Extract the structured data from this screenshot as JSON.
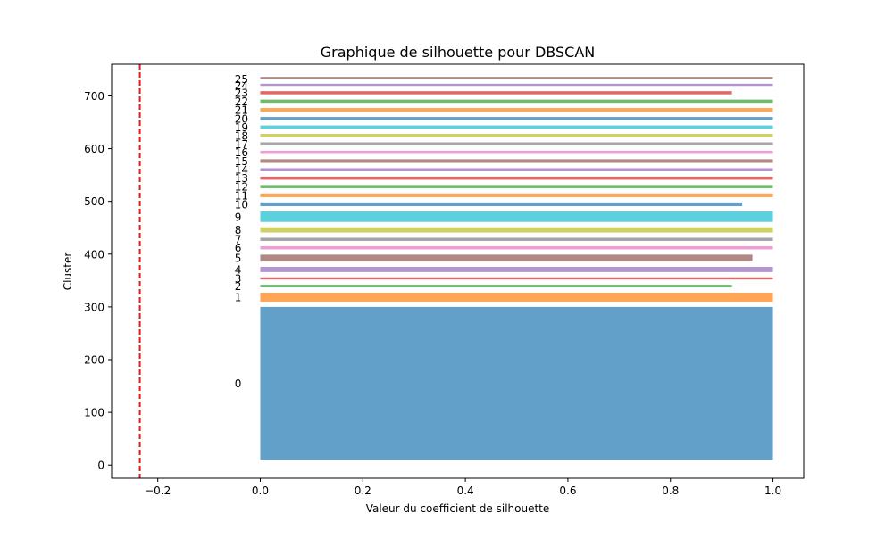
{
  "chart_data": {
    "type": "bar",
    "orientation": "horizontal",
    "title": "Graphique de silhouette pour DBSCAN",
    "xlabel": "Valeur du coefficient de silhouette",
    "ylabel": "Cluster",
    "xlim": [
      -0.29,
      1.06
    ],
    "ylim": [
      -25,
      760
    ],
    "x_ticks": [
      -0.2,
      0.0,
      0.2,
      0.4,
      0.6,
      0.8,
      1.0
    ],
    "y_ticks": [
      0,
      100,
      200,
      300,
      400,
      500,
      600,
      700
    ],
    "x_tick_labels": [
      "−0.2",
      "0.0",
      "0.2",
      "0.4",
      "0.6",
      "0.8",
      "1.0"
    ],
    "y_tick_labels": [
      "0",
      "100",
      "200",
      "300",
      "400",
      "500",
      "600",
      "700"
    ],
    "grid": false,
    "reference_line": {
      "x": -0.235,
      "color": "#e31a1c",
      "style": "dashed"
    },
    "cluster_label_x": -0.05,
    "clusters": [
      {
        "label": "0",
        "y_start": 10,
        "y_end": 300,
        "value": 1.0,
        "color": "#1f77b4"
      },
      {
        "label": "1",
        "y_start": 310,
        "y_end": 327,
        "value": 1.0,
        "color": "#ff7f0e"
      },
      {
        "label": "2",
        "y_start": 337,
        "y_end": 342,
        "value": 0.92,
        "color": "#2ca02c"
      },
      {
        "label": "3",
        "y_start": 352,
        "y_end": 356,
        "value": 1.0,
        "color": "#d62728"
      },
      {
        "label": "4",
        "y_start": 366,
        "y_end": 376,
        "value": 1.0,
        "color": "#9467bd"
      },
      {
        "label": "5",
        "y_start": 386,
        "y_end": 399,
        "value": 0.96,
        "color": "#8c564b"
      },
      {
        "label": "6",
        "y_start": 409,
        "y_end": 415,
        "value": 1.0,
        "color": "#e377c2"
      },
      {
        "label": "7",
        "y_start": 425,
        "y_end": 431,
        "value": 1.0,
        "color": "#7f7f7f"
      },
      {
        "label": "8",
        "y_start": 441,
        "y_end": 451,
        "value": 1.0,
        "color": "#bcbd22"
      },
      {
        "label": "9",
        "y_start": 461,
        "y_end": 481,
        "value": 1.0,
        "color": "#17becf"
      },
      {
        "label": "10",
        "y_start": 491,
        "y_end": 498,
        "value": 0.94,
        "color": "#1f77b4"
      },
      {
        "label": "11",
        "y_start": 508,
        "y_end": 515,
        "value": 1.0,
        "color": "#ff7f0e"
      },
      {
        "label": "12",
        "y_start": 525,
        "y_end": 531,
        "value": 1.0,
        "color": "#2ca02c"
      },
      {
        "label": "13",
        "y_start": 541,
        "y_end": 547,
        "value": 1.0,
        "color": "#d62728"
      },
      {
        "label": "14",
        "y_start": 557,
        "y_end": 563,
        "value": 1.0,
        "color": "#9467bd"
      },
      {
        "label": "15",
        "y_start": 573,
        "y_end": 580,
        "value": 1.0,
        "color": "#8c564b"
      },
      {
        "label": "16",
        "y_start": 590,
        "y_end": 596,
        "value": 1.0,
        "color": "#e377c2"
      },
      {
        "label": "17",
        "y_start": 606,
        "y_end": 612,
        "value": 1.0,
        "color": "#7f7f7f"
      },
      {
        "label": "18",
        "y_start": 622,
        "y_end": 628,
        "value": 1.0,
        "color": "#bcbd22"
      },
      {
        "label": "19",
        "y_start": 638,
        "y_end": 644,
        "value": 1.0,
        "color": "#17becf"
      },
      {
        "label": "20",
        "y_start": 654,
        "y_end": 660,
        "value": 1.0,
        "color": "#1f77b4"
      },
      {
        "label": "21",
        "y_start": 670,
        "y_end": 677,
        "value": 1.0,
        "color": "#ff7f0e"
      },
      {
        "label": "22",
        "y_start": 687,
        "y_end": 693,
        "value": 1.0,
        "color": "#2ca02c"
      },
      {
        "label": "23",
        "y_start": 703,
        "y_end": 709,
        "value": 0.92,
        "color": "#d62728"
      },
      {
        "label": "24",
        "y_start": 719,
        "y_end": 722,
        "value": 1.0,
        "color": "#9467bd"
      },
      {
        "label": "25",
        "y_start": 732,
        "y_end": 732,
        "value": 1.0,
        "color": "#8c564b"
      }
    ]
  }
}
